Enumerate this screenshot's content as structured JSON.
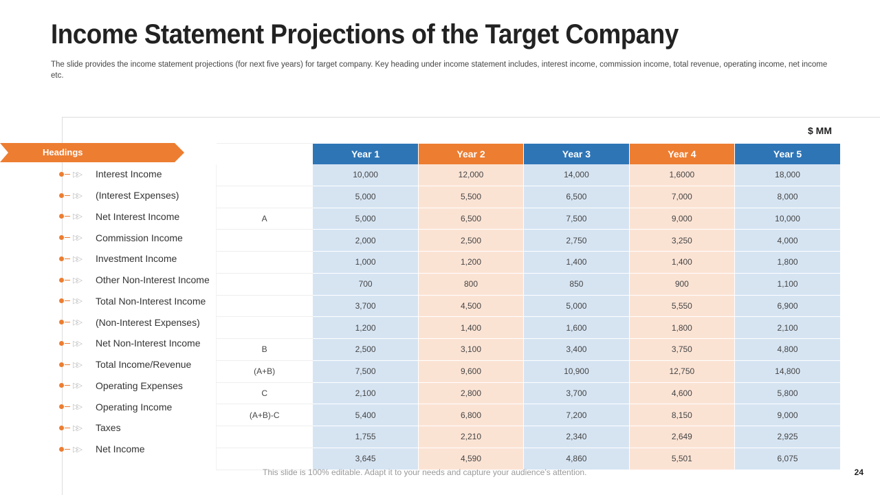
{
  "title": "Income Statement Projections of the Target Company",
  "subtitle": "The slide provides the income statement projections (for next five years) for target company. Key heading under income statement includes, interest income, commission income, total revenue, operating income, net income etc.",
  "unit": "$ MM",
  "headings_label": "Headings",
  "colors": {
    "blue": "#2e75b6",
    "orange": "#ed7d31",
    "light_blue": "#d6e4f2",
    "light_orange": "#fbe3d4"
  },
  "icons": {
    "bullet": "dot-icon",
    "arrow": "double-chevron-right-icon"
  },
  "years": [
    "Year 1",
    "Year 2",
    "Year 3",
    "Year 4",
    "Year 5"
  ],
  "rows": [
    {
      "label": "Interest Income",
      "ref": "",
      "values": [
        "10,000",
        "12,000",
        "14,000",
        "1,6000",
        "18,000"
      ]
    },
    {
      "label": "(Interest Expenses)",
      "ref": "",
      "values": [
        "5,000",
        "5,500",
        "6,500",
        "7,000",
        "8,000"
      ]
    },
    {
      "label": "Net Interest Income",
      "ref": "A",
      "values": [
        "5,000",
        "6,500",
        "7,500",
        "9,000",
        "10,000"
      ]
    },
    {
      "label": "Commission Income",
      "ref": "",
      "values": [
        "2,000",
        "2,500",
        "2,750",
        "3,250",
        "4,000"
      ]
    },
    {
      "label": "Investment Income",
      "ref": "",
      "values": [
        "1,000",
        "1,200",
        "1,400",
        "1,400",
        "1,800"
      ]
    },
    {
      "label": "Other Non-Interest Income",
      "ref": "",
      "values": [
        "700",
        "800",
        "850",
        "900",
        "1,100"
      ]
    },
    {
      "label": "Total Non-Interest Income",
      "ref": "",
      "values": [
        "3,700",
        "4,500",
        "5,000",
        "5,550",
        "6,900"
      ]
    },
    {
      "label": "(Non-Interest Expenses)",
      "ref": "",
      "values": [
        "1,200",
        "1,400",
        "1,600",
        "1,800",
        "2,100"
      ]
    },
    {
      "label": "Net Non-Interest Income",
      "ref": "B",
      "values": [
        "2,500",
        "3,100",
        "3,400",
        "3,750",
        "4,800"
      ]
    },
    {
      "label": "Total Income/Revenue",
      "ref": "(A+B)",
      "values": [
        "7,500",
        "9,600",
        "10,900",
        "12,750",
        "14,800"
      ]
    },
    {
      "label": "Operating Expenses",
      "ref": "C",
      "values": [
        "2,100",
        "2,800",
        "3,700",
        "4,600",
        "5,800"
      ]
    },
    {
      "label": "Operating Income",
      "ref": "(A+B)-C",
      "values": [
        "5,400",
        "6,800",
        "7,200",
        "8,150",
        "9,000"
      ]
    },
    {
      "label": "Taxes",
      "ref": "",
      "values": [
        "1,755",
        "2,210",
        "2,340",
        "2,649",
        "2,925"
      ]
    },
    {
      "label": "Net Income",
      "ref": "",
      "values": [
        "3,645",
        "4,590",
        "4,860",
        "5,501",
        "6,075"
      ]
    }
  ],
  "footer": "This slide is 100% editable. Adapt it to your needs and capture your audience’s attention.",
  "page_number": "24"
}
